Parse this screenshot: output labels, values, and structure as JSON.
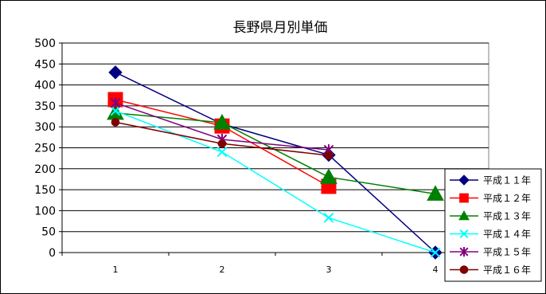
{
  "chart_data": {
    "type": "line",
    "title": "長野県月別単価",
    "xlabel": "",
    "ylabel": "",
    "x": [
      1,
      2,
      3,
      4
    ],
    "ylim": [
      0,
      500
    ],
    "yticks": [
      0,
      50,
      100,
      150,
      200,
      250,
      300,
      350,
      400,
      450,
      500
    ],
    "grid": true,
    "legend_position": "right",
    "series": [
      {
        "name": "平成１１年",
        "color": "#000080",
        "marker": "diamond",
        "values": [
          430,
          307,
          233,
          0
        ]
      },
      {
        "name": "平成１２年",
        "color": "#FF0000",
        "marker": "square",
        "values": [
          365,
          302,
          158,
          null
        ]
      },
      {
        "name": "平成１３年",
        "color": "#008000",
        "marker": "triangle",
        "values": [
          333,
          310,
          180,
          140
        ]
      },
      {
        "name": "平成１４年",
        "color": "#00FFFF",
        "marker": "x",
        "values": [
          338,
          240,
          83,
          0
        ]
      },
      {
        "name": "平成１５年",
        "color": "#800080",
        "marker": "star",
        "values": [
          357,
          270,
          245,
          null
        ]
      },
      {
        "name": "平成１６年",
        "color": "#800000",
        "marker": "circle",
        "values": [
          311,
          260,
          232,
          null
        ]
      }
    ]
  }
}
